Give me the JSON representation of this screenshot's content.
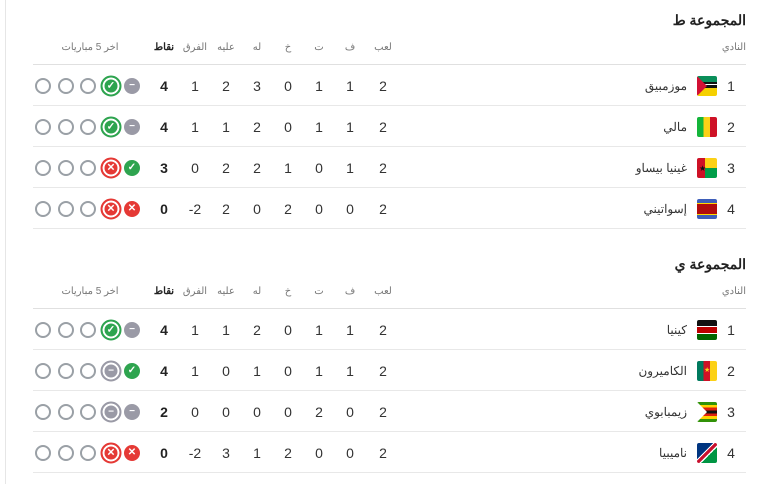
{
  "colors": {
    "win": "#2ea44f",
    "loss": "#e53935",
    "draw": "#9a9aa6",
    "empty": "#9aa0a6"
  },
  "headers": {
    "club": "النادي",
    "played": "لعب",
    "won": "ف",
    "drawn": "ت",
    "lost": "خ",
    "for": "له",
    "against": "عليه",
    "diff": "الفرق",
    "points": "نقاط",
    "form": "اخر 5 مباريات"
  },
  "groups": [
    {
      "title": "المجموعة ط",
      "rows": [
        {
          "rank": "1",
          "flag": "mozambique-flag",
          "name": "موزمبيق",
          "played": "2",
          "won": "1",
          "drawn": "1",
          "lost": "0",
          "for": "3",
          "against": "2",
          "diff": "1",
          "points": "4",
          "form": [
            "D",
            "W",
            "",
            "",
            ""
          ]
        },
        {
          "rank": "2",
          "flag": "mali-flag",
          "name": "مالي",
          "played": "2",
          "won": "1",
          "drawn": "1",
          "lost": "0",
          "for": "2",
          "against": "1",
          "diff": "1",
          "points": "4",
          "form": [
            "D",
            "W",
            "",
            "",
            ""
          ]
        },
        {
          "rank": "3",
          "flag": "guinea-bissau-flag",
          "name": "غينيا بيساو",
          "played": "2",
          "won": "1",
          "drawn": "0",
          "lost": "1",
          "for": "2",
          "against": "2",
          "diff": "0",
          "points": "3",
          "form": [
            "W",
            "L",
            "",
            "",
            ""
          ]
        },
        {
          "rank": "4",
          "flag": "eswatini-flag",
          "name": "إسواتيني",
          "played": "2",
          "won": "0",
          "drawn": "0",
          "lost": "2",
          "for": "0",
          "against": "2",
          "diff": "-2",
          "points": "0",
          "form": [
            "L",
            "L",
            "",
            "",
            ""
          ]
        }
      ]
    },
    {
      "title": "المجموعة ي",
      "rows": [
        {
          "rank": "1",
          "flag": "kenya-flag",
          "name": "كينيا",
          "played": "2",
          "won": "1",
          "drawn": "1",
          "lost": "0",
          "for": "2",
          "against": "1",
          "diff": "1",
          "points": "4",
          "form": [
            "D",
            "W",
            "",
            "",
            ""
          ]
        },
        {
          "rank": "2",
          "flag": "cameroon-flag",
          "name": "الكاميرون",
          "played": "2",
          "won": "1",
          "drawn": "1",
          "lost": "0",
          "for": "1",
          "against": "0",
          "diff": "1",
          "points": "4",
          "form": [
            "W",
            "D",
            "",
            "",
            ""
          ]
        },
        {
          "rank": "3",
          "flag": "zimbabwe-flag",
          "name": "زيمبابوي",
          "played": "2",
          "won": "0",
          "drawn": "2",
          "lost": "0",
          "for": "0",
          "against": "0",
          "diff": "0",
          "points": "2",
          "form": [
            "D",
            "D",
            "",
            "",
            ""
          ]
        },
        {
          "rank": "4",
          "flag": "namibia-flag",
          "name": "ناميبيا",
          "played": "2",
          "won": "0",
          "drawn": "0",
          "lost": "2",
          "for": "1",
          "against": "3",
          "diff": "-2",
          "points": "0",
          "form": [
            "L",
            "L",
            "",
            "",
            ""
          ]
        }
      ]
    }
  ]
}
